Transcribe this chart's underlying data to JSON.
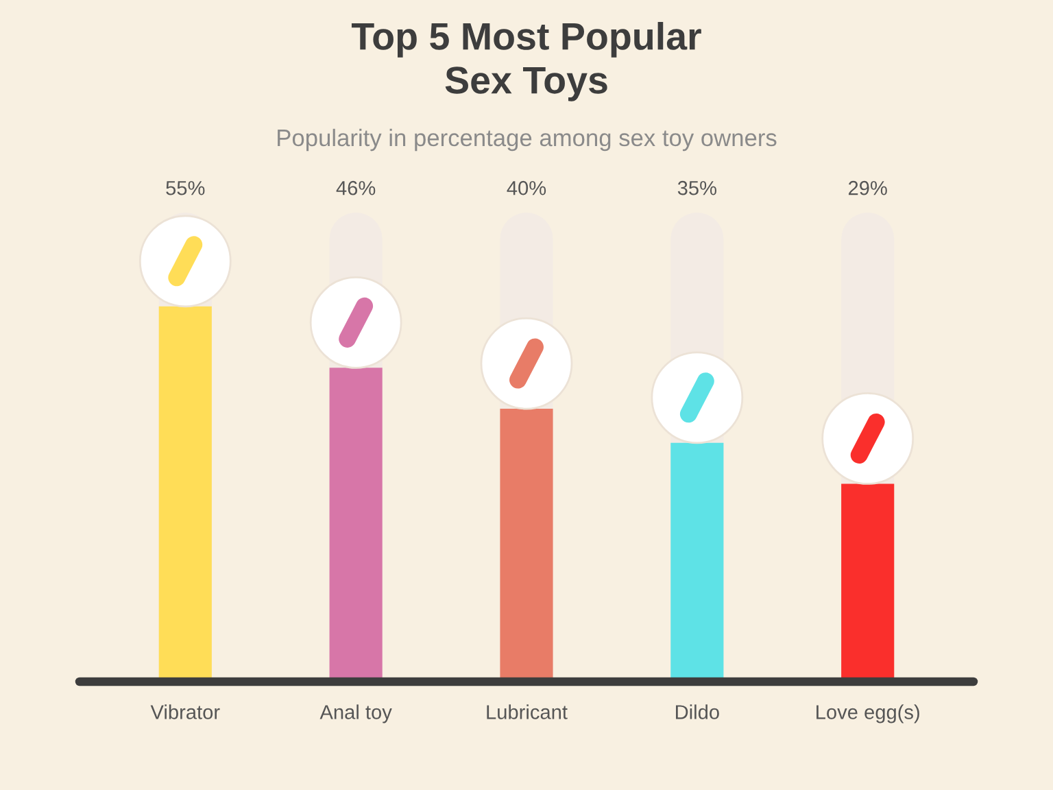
{
  "chart_data": {
    "type": "bar",
    "title": "Top 5 Most Popular Sex Toys",
    "subtitle": "Popularity in percentage among sex toy owners",
    "categories": [
      "Vibrator",
      "Anal toy",
      "Lubricant",
      "Dildo",
      "Love egg(s)"
    ],
    "values": [
      55,
      46,
      40,
      35,
      29
    ],
    "colors": [
      "#ffdd57",
      "#d776a8",
      "#e87c67",
      "#5ee2e6",
      "#fa2f2c"
    ],
    "value_labels": [
      "55%",
      "46%",
      "40%",
      "35%",
      "29%"
    ]
  }
}
